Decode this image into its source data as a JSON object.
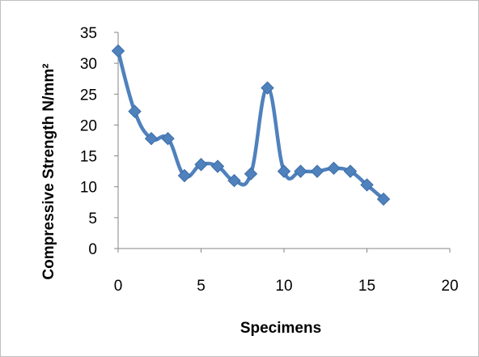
{
  "chart_data": {
    "type": "line",
    "title": "",
    "xlabel": "Specimens",
    "ylabel": "Compressive Strength N/mm²",
    "xlim": [
      0,
      20
    ],
    "ylim": [
      0,
      35
    ],
    "x_ticks": [
      0,
      5,
      10,
      15,
      20
    ],
    "y_ticks": [
      0,
      5,
      10,
      15,
      20,
      25,
      30,
      35
    ],
    "grid": false,
    "legend": "none",
    "smooth": true,
    "series": [
      {
        "color": "#4f81bd",
        "marker": "diamond",
        "x": [
          0,
          1,
          2,
          3,
          4,
          5,
          6,
          7,
          8,
          9,
          10,
          11,
          12,
          13,
          14,
          15,
          16
        ],
        "y": [
          32,
          22.2,
          17.8,
          17.8,
          11.8,
          13.6,
          13.3,
          11,
          12.1,
          26,
          12.5,
          12.5,
          12.5,
          13,
          12.5,
          10.3,
          8
        ]
      }
    ]
  }
}
